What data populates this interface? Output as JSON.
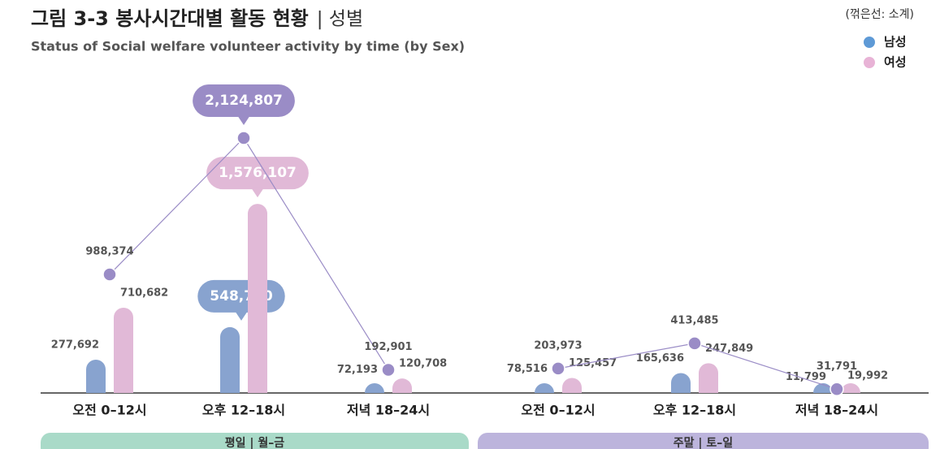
{
  "chart_data": {
    "type": "bar-line",
    "title": "그림 3-3 봉사시간대별 활동 현황",
    "title_suffix": "| 성별",
    "subtitle": "Status of Social welfare volunteer activity by time (by Sex)",
    "note": "(꺾은선: 소계)",
    "categories": [
      "오전 0–12시",
      "오후 12–18시",
      "저녁 18–24시",
      "오전 0–12시",
      "오후 12–18시",
      "저녁 18–24시"
    ],
    "groups": [
      "평일 | 월–금",
      "주말 | 토–일"
    ],
    "group_colors": [
      "#a9dac8",
      "#bcb4dc"
    ],
    "series": [
      {
        "name": "남성",
        "color": "#88a3cf",
        "legend_color": "#5e9ad6",
        "values": [
          277692,
          548700,
          72193,
          78516,
          165636,
          11799
        ],
        "value_labels": [
          "277,692",
          "548,700",
          "72,193",
          "78,516",
          "165,636",
          "11,799"
        ]
      },
      {
        "name": "여성",
        "color": "#e1b9d7",
        "legend_color": "#e8b3d6",
        "values": [
          710682,
          1576107,
          120708,
          125457,
          247849,
          19992
        ],
        "value_labels": [
          "710,682",
          "1,576,107",
          "120,708",
          "125,457",
          "247,849",
          "19,992"
        ]
      }
    ],
    "line": {
      "color": "#9a8cc6",
      "values": [
        988374,
        2124807,
        192901,
        203973,
        413485,
        31791
      ],
      "value_labels": [
        "988,374",
        "2,124,807",
        "192,901",
        "203,973",
        "413,485",
        "31,791"
      ]
    },
    "legend": "top-right"
  }
}
